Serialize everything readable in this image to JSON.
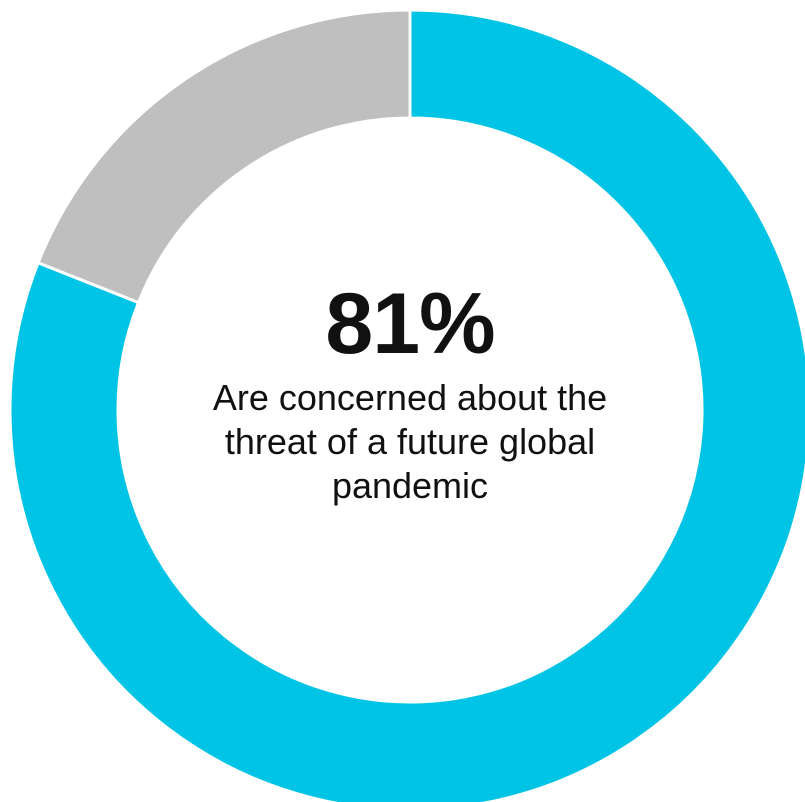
{
  "chart_data": {
    "type": "pie",
    "donut": true,
    "slices": [
      {
        "value": 81,
        "color": "#00C4E6"
      },
      {
        "value": 19,
        "color": "#BFBFBF"
      }
    ],
    "center_value": "81%",
    "center_label_lines": [
      "Are concerned about the",
      "threat of a future global",
      "pandemic"
    ],
    "title": "",
    "legend": "none"
  },
  "colors": {
    "accent": "#00C4E6",
    "remainder": "#BFBFBF",
    "background": "#FFFFFF",
    "text": "#111111"
  }
}
